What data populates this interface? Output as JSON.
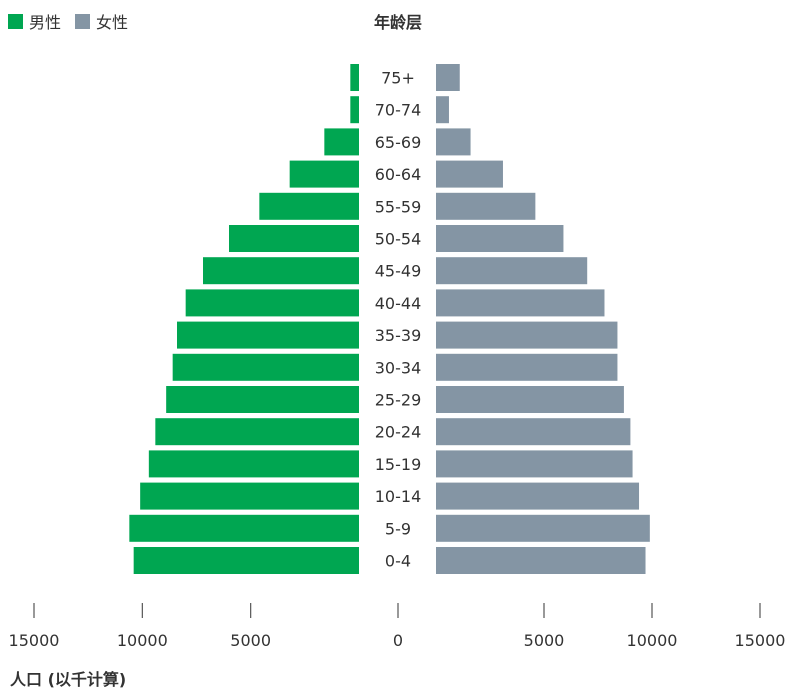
{
  "legend": {
    "male_label": "男性",
    "female_label": "女性"
  },
  "colors": {
    "male": "#00a651",
    "female": "#8495a4"
  },
  "chart_data": {
    "type": "bar",
    "subtype": "population-pyramid",
    "title": "年龄层",
    "xlabel": "人口 (以千计算)",
    "categories": [
      "75+",
      "70-74",
      "65-69",
      "60-64",
      "55-59",
      "50-54",
      "45-49",
      "40-44",
      "35-39",
      "30-34",
      "25-29",
      "20-24",
      "15-19",
      "10-14",
      "5-9",
      "0-4"
    ],
    "series": [
      {
        "name": "男性",
        "side": "left",
        "values": [
          400,
          400,
          1600,
          3200,
          4600,
          6000,
          7200,
          8000,
          8400,
          8600,
          8900,
          9400,
          9700,
          10100,
          10600,
          10400
        ]
      },
      {
        "name": "女性",
        "side": "right",
        "values": [
          1100,
          600,
          1600,
          3100,
          4600,
          5900,
          7000,
          7800,
          8400,
          8400,
          8700,
          9000,
          9100,
          9400,
          9900,
          9700
        ]
      }
    ],
    "left_ticks": [
      "15000",
      "10000",
      "5000"
    ],
    "center_tick": "0",
    "right_ticks": [
      "5000",
      "10000",
      "15000"
    ],
    "xlim": [
      0,
      15000
    ],
    "grid": false,
    "legend_position": "top-left"
  }
}
